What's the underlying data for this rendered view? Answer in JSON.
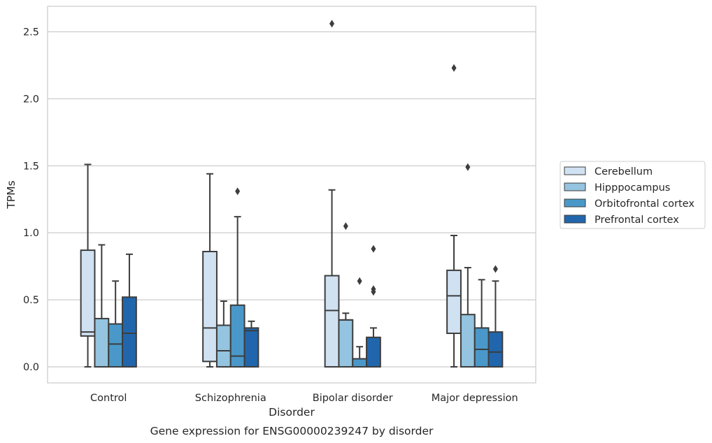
{
  "chart_data": {
    "type": "box",
    "title": "",
    "caption": "Gene expression for ENSG00000239247 by disorder",
    "xlabel": "Disorder",
    "ylabel": "TPMs",
    "ylim": [
      -0.12,
      2.69
    ],
    "yticks": [
      0.0,
      0.5,
      1.0,
      1.5,
      2.0,
      2.5
    ],
    "ytick_labels": [
      "0.0",
      "0.5",
      "1.0",
      "1.5",
      "2.0",
      "2.5"
    ],
    "grid": "horizontal",
    "legend_position": "right",
    "categories": [
      "Control",
      "Schizophrenia",
      "Bipolar disorder",
      "Major depression"
    ],
    "series": [
      {
        "name": "Cerebellum",
        "color": "#d0e1f2",
        "boxes": [
          {
            "whisker_low": 0.0,
            "q1": 0.23,
            "median": 0.26,
            "q3": 0.87,
            "whisker_high": 1.51,
            "outliers": []
          },
          {
            "whisker_low": 0.0,
            "q1": 0.04,
            "median": 0.29,
            "q3": 0.86,
            "whisker_high": 1.44,
            "outliers": []
          },
          {
            "whisker_low": 0.0,
            "q1": 0.0,
            "median": 0.42,
            "q3": 0.68,
            "whisker_high": 1.32,
            "outliers": [
              2.56
            ]
          },
          {
            "whisker_low": 0.0,
            "q1": 0.25,
            "median": 0.53,
            "q3": 0.72,
            "whisker_high": 0.98,
            "outliers": [
              2.23
            ]
          }
        ]
      },
      {
        "name": "Hipppocampus",
        "color": "#94c4df",
        "boxes": [
          {
            "whisker_low": 0.0,
            "q1": 0.0,
            "median": 0.0,
            "q3": 0.36,
            "whisker_high": 0.91,
            "outliers": []
          },
          {
            "whisker_low": 0.0,
            "q1": 0.0,
            "median": 0.12,
            "q3": 0.31,
            "whisker_high": 0.49,
            "outliers": []
          },
          {
            "whisker_low": 0.0,
            "q1": 0.0,
            "median": 0.35,
            "q3": 0.35,
            "whisker_high": 0.4,
            "outliers": [
              1.05
            ]
          },
          {
            "whisker_low": 0.0,
            "q1": 0.0,
            "median": 0.0,
            "q3": 0.39,
            "whisker_high": 0.74,
            "outliers": [
              1.49
            ]
          }
        ]
      },
      {
        "name": "Orbitofrontal cortex",
        "color": "#4a98c9",
        "boxes": [
          {
            "whisker_low": 0.0,
            "q1": 0.0,
            "median": 0.17,
            "q3": 0.32,
            "whisker_high": 0.64,
            "outliers": []
          },
          {
            "whisker_low": 0.0,
            "q1": 0.0,
            "median": 0.08,
            "q3": 0.46,
            "whisker_high": 1.12,
            "outliers": [
              1.31
            ]
          },
          {
            "whisker_low": 0.0,
            "q1": 0.0,
            "median": 0.06,
            "q3": 0.06,
            "whisker_high": 0.15,
            "outliers": [
              0.64
            ]
          },
          {
            "whisker_low": 0.0,
            "q1": 0.0,
            "median": 0.13,
            "q3": 0.29,
            "whisker_high": 0.65,
            "outliers": []
          }
        ]
      },
      {
        "name": "Prefrontal cortex",
        "color": "#2166ac",
        "boxes": [
          {
            "whisker_low": 0.0,
            "q1": 0.0,
            "median": 0.25,
            "q3": 0.52,
            "whisker_high": 0.84,
            "outliers": []
          },
          {
            "whisker_low": 0.0,
            "q1": 0.0,
            "median": 0.27,
            "q3": 0.29,
            "whisker_high": 0.34,
            "outliers": []
          },
          {
            "whisker_low": 0.0,
            "q1": 0.0,
            "median": 0.0,
            "q3": 0.22,
            "whisker_high": 0.29,
            "outliers": [
              0.88,
              0.58,
              0.56
            ]
          },
          {
            "whisker_low": 0.0,
            "q1": 0.0,
            "median": 0.11,
            "q3": 0.26,
            "whisker_high": 0.64,
            "outliers": [
              0.73
            ]
          }
        ]
      }
    ]
  }
}
